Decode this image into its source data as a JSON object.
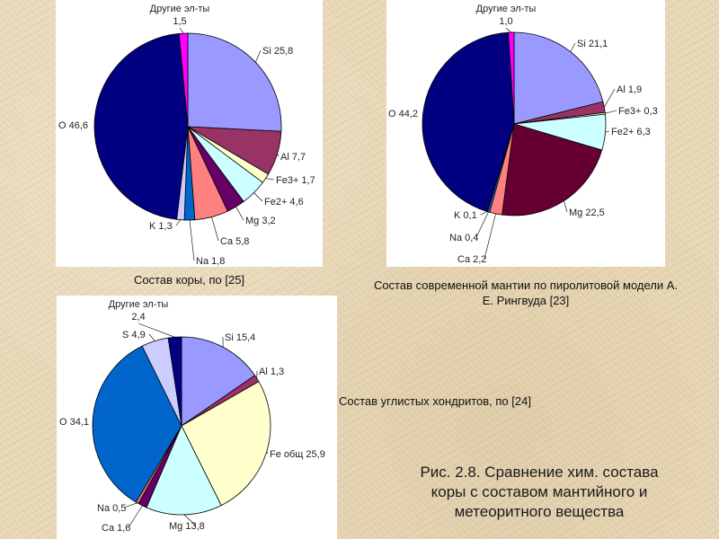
{
  "chart_data": [
    {
      "type": "pie",
      "title": "Состав коры, по [25]",
      "slices": [
        {
          "label": "Si",
          "value": 25.8,
          "display": "Si 25,8",
          "color": "#9999ff"
        },
        {
          "label": "Al",
          "value": 7.7,
          "display": "Al 7,7",
          "color": "#993366"
        },
        {
          "label": "Fe3+",
          "value": 1.7,
          "display": "Fe3+ 1,7",
          "color": "#ffffcc"
        },
        {
          "label": "Fe2+",
          "value": 4.6,
          "display": "Fe2+ 4,6",
          "color": "#ccffff"
        },
        {
          "label": "Mg",
          "value": 3.2,
          "display": "Mg 3,2",
          "color": "#660066"
        },
        {
          "label": "Ca",
          "value": 5.8,
          "display": "Ca 5,8",
          "color": "#ff8080"
        },
        {
          "label": "Na",
          "value": 1.8,
          "display": "Na 1,8",
          "color": "#0066cc"
        },
        {
          "label": "K",
          "value": 1.3,
          "display": "K 1,3",
          "color": "#ccccff"
        },
        {
          "label": "O",
          "value": 46.6,
          "display": "O 46,6",
          "color": "#000080"
        },
        {
          "label": "Другие эл-ты",
          "value": 1.5,
          "display": "1,5",
          "color": "#ff00ff"
        }
      ]
    },
    {
      "type": "pie",
      "title": "Состав современной мантии по пиролитовой модели А. Е. Рингвуда [23]",
      "slices": [
        {
          "label": "Si",
          "value": 21.1,
          "display": "Si 21,1",
          "color": "#9999ff"
        },
        {
          "label": "Al",
          "value": 1.9,
          "display": "Al 1,9",
          "color": "#993366"
        },
        {
          "label": "Fe3+",
          "value": 0.3,
          "display": "Fe3+ 0,3",
          "color": "#ffffcc"
        },
        {
          "label": "Fe2+",
          "value": 6.3,
          "display": "Fe2+ 6,3",
          "color": "#ccffff"
        },
        {
          "label": "Mg",
          "value": 22.5,
          "display": "Mg 22,5",
          "color": "#660033"
        },
        {
          "label": "Ca",
          "value": 2.2,
          "display": "Ca 2,2",
          "color": "#ff8080"
        },
        {
          "label": "Na",
          "value": 0.4,
          "display": "Na 0,4",
          "color": "#0066cc"
        },
        {
          "label": "K",
          "value": 0.1,
          "display": "K 0,1",
          "color": "#ccccff"
        },
        {
          "label": "O",
          "value": 44.2,
          "display": "O 44,2",
          "color": "#000080"
        },
        {
          "label": "Другие эл-ты",
          "value": 1.0,
          "display": "1,0",
          "color": "#ff00ff"
        }
      ]
    },
    {
      "type": "pie",
      "title": "Состав углистых хондритов, по [24]",
      "slices": [
        {
          "label": "Si",
          "value": 15.4,
          "display": "Si 15,4",
          "color": "#9999ff"
        },
        {
          "label": "Al",
          "value": 1.3,
          "display": "Al 1,3",
          "color": "#993366"
        },
        {
          "label": "Fe общ",
          "value": 25.9,
          "display": "Fe общ 25,9",
          "color": "#ffffcc"
        },
        {
          "label": "Mg",
          "value": 13.8,
          "display": "Mg 13,8",
          "color": "#ccffff"
        },
        {
          "label": "Ca",
          "value": 1.6,
          "display": "Ca 1,6",
          "color": "#660066"
        },
        {
          "label": "Na",
          "value": 0.5,
          "display": "Na 0,5",
          "color": "#ff8080"
        },
        {
          "label": "O",
          "value": 34.1,
          "display": "O 34,1",
          "color": "#0066cc"
        },
        {
          "label": "S",
          "value": 4.9,
          "display": "S 4,9",
          "color": "#ccccff"
        },
        {
          "label": "Другие эл-ты",
          "value": 2.4,
          "display": "2,4",
          "color": "#000080"
        }
      ]
    }
  ],
  "figure_caption": {
    "line1": "Рис. 2.8. Сравнение хим. состава",
    "line2": "коры с составом мантийного и",
    "line3": "метеоритного  вещества"
  }
}
